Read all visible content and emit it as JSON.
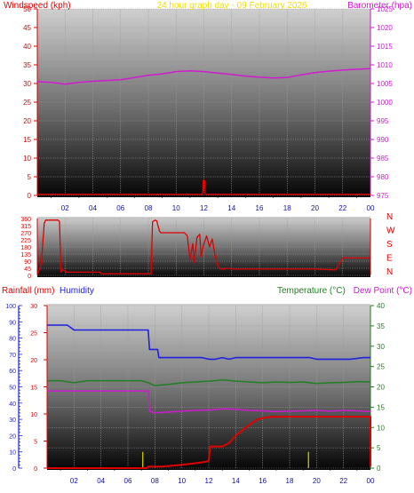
{
  "header": {
    "wind_label": "Windspeed (kph)",
    "title": "24 hour graph day - 09 February 2026",
    "baro_label": "Barometer (hpa)"
  },
  "bottom_header": {
    "rain_label": "Rainfall (mm)",
    "humidity_label": "Humidity",
    "temp_label": "Temperature (°C)",
    "dew_label": "Dew Point (°C)"
  },
  "colors": {
    "wind": "#e00000",
    "baro": "#d01ad0",
    "title": "#f0e000",
    "rain": "#e00000",
    "humidity": "#2020e0",
    "temp": "#208020",
    "dew": "#d01ad0"
  },
  "chart_data": [
    {
      "type": "line",
      "title": "24 hour graph day - 09 February 2026",
      "x_ticks": [
        "02",
        "04",
        "06",
        "08",
        "10",
        "12",
        "14",
        "16",
        "18",
        "20",
        "22",
        "00"
      ],
      "xlim": [
        0,
        24
      ],
      "left_axis": {
        "label": "Windspeed (kph)",
        "ylim": [
          0,
          50
        ],
        "ticks": [
          0,
          5,
          10,
          15,
          20,
          25,
          30,
          35,
          40,
          45,
          50
        ]
      },
      "right_axis": {
        "label": "Barometer (hpa)",
        "ylim": [
          975,
          1025
        ],
        "ticks": [
          975,
          980,
          985,
          990,
          995,
          1000,
          1005,
          1010,
          1015,
          1020,
          1025
        ]
      },
      "series": [
        {
          "name": "Windspeed (kph)",
          "axis": "left",
          "x": [
            0,
            11.9,
            11.95,
            12.05,
            12.1,
            24
          ],
          "y": [
            0.3,
            0.3,
            4,
            4,
            0.3,
            0.3
          ]
        },
        {
          "name": "Barometer (hpa)",
          "axis": "right",
          "x": [
            0,
            1,
            2,
            3,
            4,
            5,
            6,
            7,
            8,
            9,
            10,
            11,
            12,
            13,
            14,
            15,
            16,
            17,
            18,
            19,
            20,
            21,
            22,
            23,
            24
          ],
          "y": [
            1005.5,
            1005.3,
            1004.8,
            1005.3,
            1005.6,
            1005.8,
            1006,
            1006.6,
            1007.2,
            1007.6,
            1008.2,
            1008.4,
            1008.2,
            1007.8,
            1007.4,
            1007,
            1006.7,
            1006.5,
            1006.6,
            1007.3,
            1007.9,
            1008.3,
            1008.6,
            1008.8,
            1009
          ]
        }
      ]
    },
    {
      "type": "line",
      "xlim": [
        0,
        24
      ],
      "left_axis": {
        "ylim": [
          0,
          360
        ],
        "ticks": [
          0,
          45,
          90,
          135,
          180,
          225,
          270,
          315,
          360
        ]
      },
      "right_axis": {
        "labels": [
          "N",
          "W",
          "S",
          "E",
          "N"
        ]
      },
      "series": [
        {
          "name": "Wind direction",
          "x": [
            0,
            0.2,
            0.3,
            0.5,
            0.6,
            1.5,
            1.6,
            1.7,
            1.8,
            2.0,
            2.1,
            4.5,
            4.6,
            6.0,
            7.0,
            8.2,
            8.3,
            8.5,
            8.6,
            8.8,
            8.9,
            10.5,
            10.6,
            10.8,
            11.0,
            11.2,
            11.3,
            11.5,
            11.7,
            11.8,
            12.0,
            12.2,
            12.4,
            12.6,
            12.8,
            13.0,
            13.2,
            13.5,
            13.6,
            14.0,
            16.0,
            17.0,
            20.0,
            21.5,
            22.0,
            24.0
          ],
          "y": [
            10,
            40,
            90,
            330,
            350,
            350,
            340,
            20,
            35,
            30,
            20,
            20,
            10,
            10,
            10,
            10,
            340,
            350,
            345,
            280,
            270,
            270,
            270,
            250,
            100,
            200,
            80,
            240,
            260,
            120,
            200,
            250,
            180,
            230,
            130,
            60,
            40,
            40,
            45,
            40,
            40,
            40,
            40,
            35,
            110,
            110
          ]
        }
      ]
    },
    {
      "type": "line",
      "xlim": [
        0,
        24
      ],
      "x_ticks": [
        "02",
        "04",
        "06",
        "08",
        "10",
        "12",
        "14",
        "16",
        "18",
        "20",
        "22",
        "00"
      ],
      "rain_axis": {
        "label": "Rainfall (mm)",
        "ylim": [
          0,
          30
        ],
        "ticks": [
          0,
          5,
          10,
          15,
          20,
          25,
          30
        ]
      },
      "humidity_axis": {
        "label": "Humidity",
        "ylim": [
          0,
          100
        ],
        "ticks": [
          0,
          10,
          20,
          30,
          40,
          50,
          60,
          70,
          80,
          90,
          100
        ]
      },
      "temp_axis": {
        "label": "Temperature (°C)",
        "ylim": [
          0,
          40
        ],
        "ticks": [
          0,
          5,
          10,
          15,
          20,
          25,
          30,
          35,
          40
        ]
      },
      "series": [
        {
          "name": "Humidity",
          "axis": "humidity",
          "x": [
            0,
            1.5,
            2.0,
            7.5,
            7.6,
            8.2,
            8.3,
            11.5,
            12.0,
            12.5,
            13.0,
            13.5,
            14.0,
            19.5,
            20.0,
            22.5,
            23.5,
            24
          ],
          "y": [
            88,
            88,
            85,
            85,
            73,
            73,
            68,
            68,
            67,
            67,
            68,
            67,
            68,
            68,
            67,
            67,
            68,
            68
          ]
        },
        {
          "name": "Temperature (°C)",
          "axis": "temp",
          "x": [
            0,
            1,
            2,
            3,
            4,
            5,
            6,
            7,
            7.5,
            8,
            9,
            10,
            11,
            12,
            13,
            14,
            15,
            16,
            17,
            18,
            19,
            20,
            21,
            22,
            23,
            24
          ],
          "y": [
            21.5,
            21.5,
            21,
            21.5,
            21.5,
            21.5,
            21.5,
            21.5,
            21,
            20.3,
            20.6,
            21,
            21.2,
            21.4,
            21.7,
            21.4,
            21.2,
            21,
            21.2,
            21.1,
            21.2,
            20.8,
            21,
            21.1,
            21.3,
            21.2
          ]
        },
        {
          "name": "Dew Point (°C)",
          "axis": "temp",
          "x": [
            0,
            2,
            4,
            6,
            7.5,
            7.6,
            8,
            9,
            10,
            11,
            12,
            13,
            14,
            15,
            16,
            17,
            18,
            19,
            20,
            21,
            22,
            23,
            24
          ],
          "y": [
            19,
            19,
            19,
            19,
            19,
            14,
            13.6,
            13.8,
            14,
            14.2,
            14.3,
            14.6,
            14.5,
            14.2,
            14.1,
            13.9,
            14,
            14.1,
            14.2,
            14,
            14.2,
            14.1,
            13.9
          ]
        },
        {
          "name": "Rainfall (mm)",
          "axis": "rain",
          "x": [
            0,
            7.4,
            7.5,
            8.5,
            9,
            10,
            11,
            11.8,
            12.0,
            12.1,
            13,
            13.5,
            14,
            14.5,
            15,
            15.6,
            16.3,
            16.8,
            17.1,
            23.9,
            24,
            24
          ],
          "y": [
            0,
            0,
            0.3,
            0.3,
            0.4,
            0.6,
            0.9,
            1.2,
            1.4,
            4,
            4,
            4.6,
            6,
            7,
            8,
            9,
            9.4,
            9.5,
            9.5,
            9.5,
            9.5,
            0.3
          ]
        },
        {
          "name": "Rain rate",
          "axis": "rain",
          "bars": true,
          "x": [
            7.1,
            19.4
          ],
          "y": [
            3,
            3
          ]
        }
      ]
    }
  ]
}
